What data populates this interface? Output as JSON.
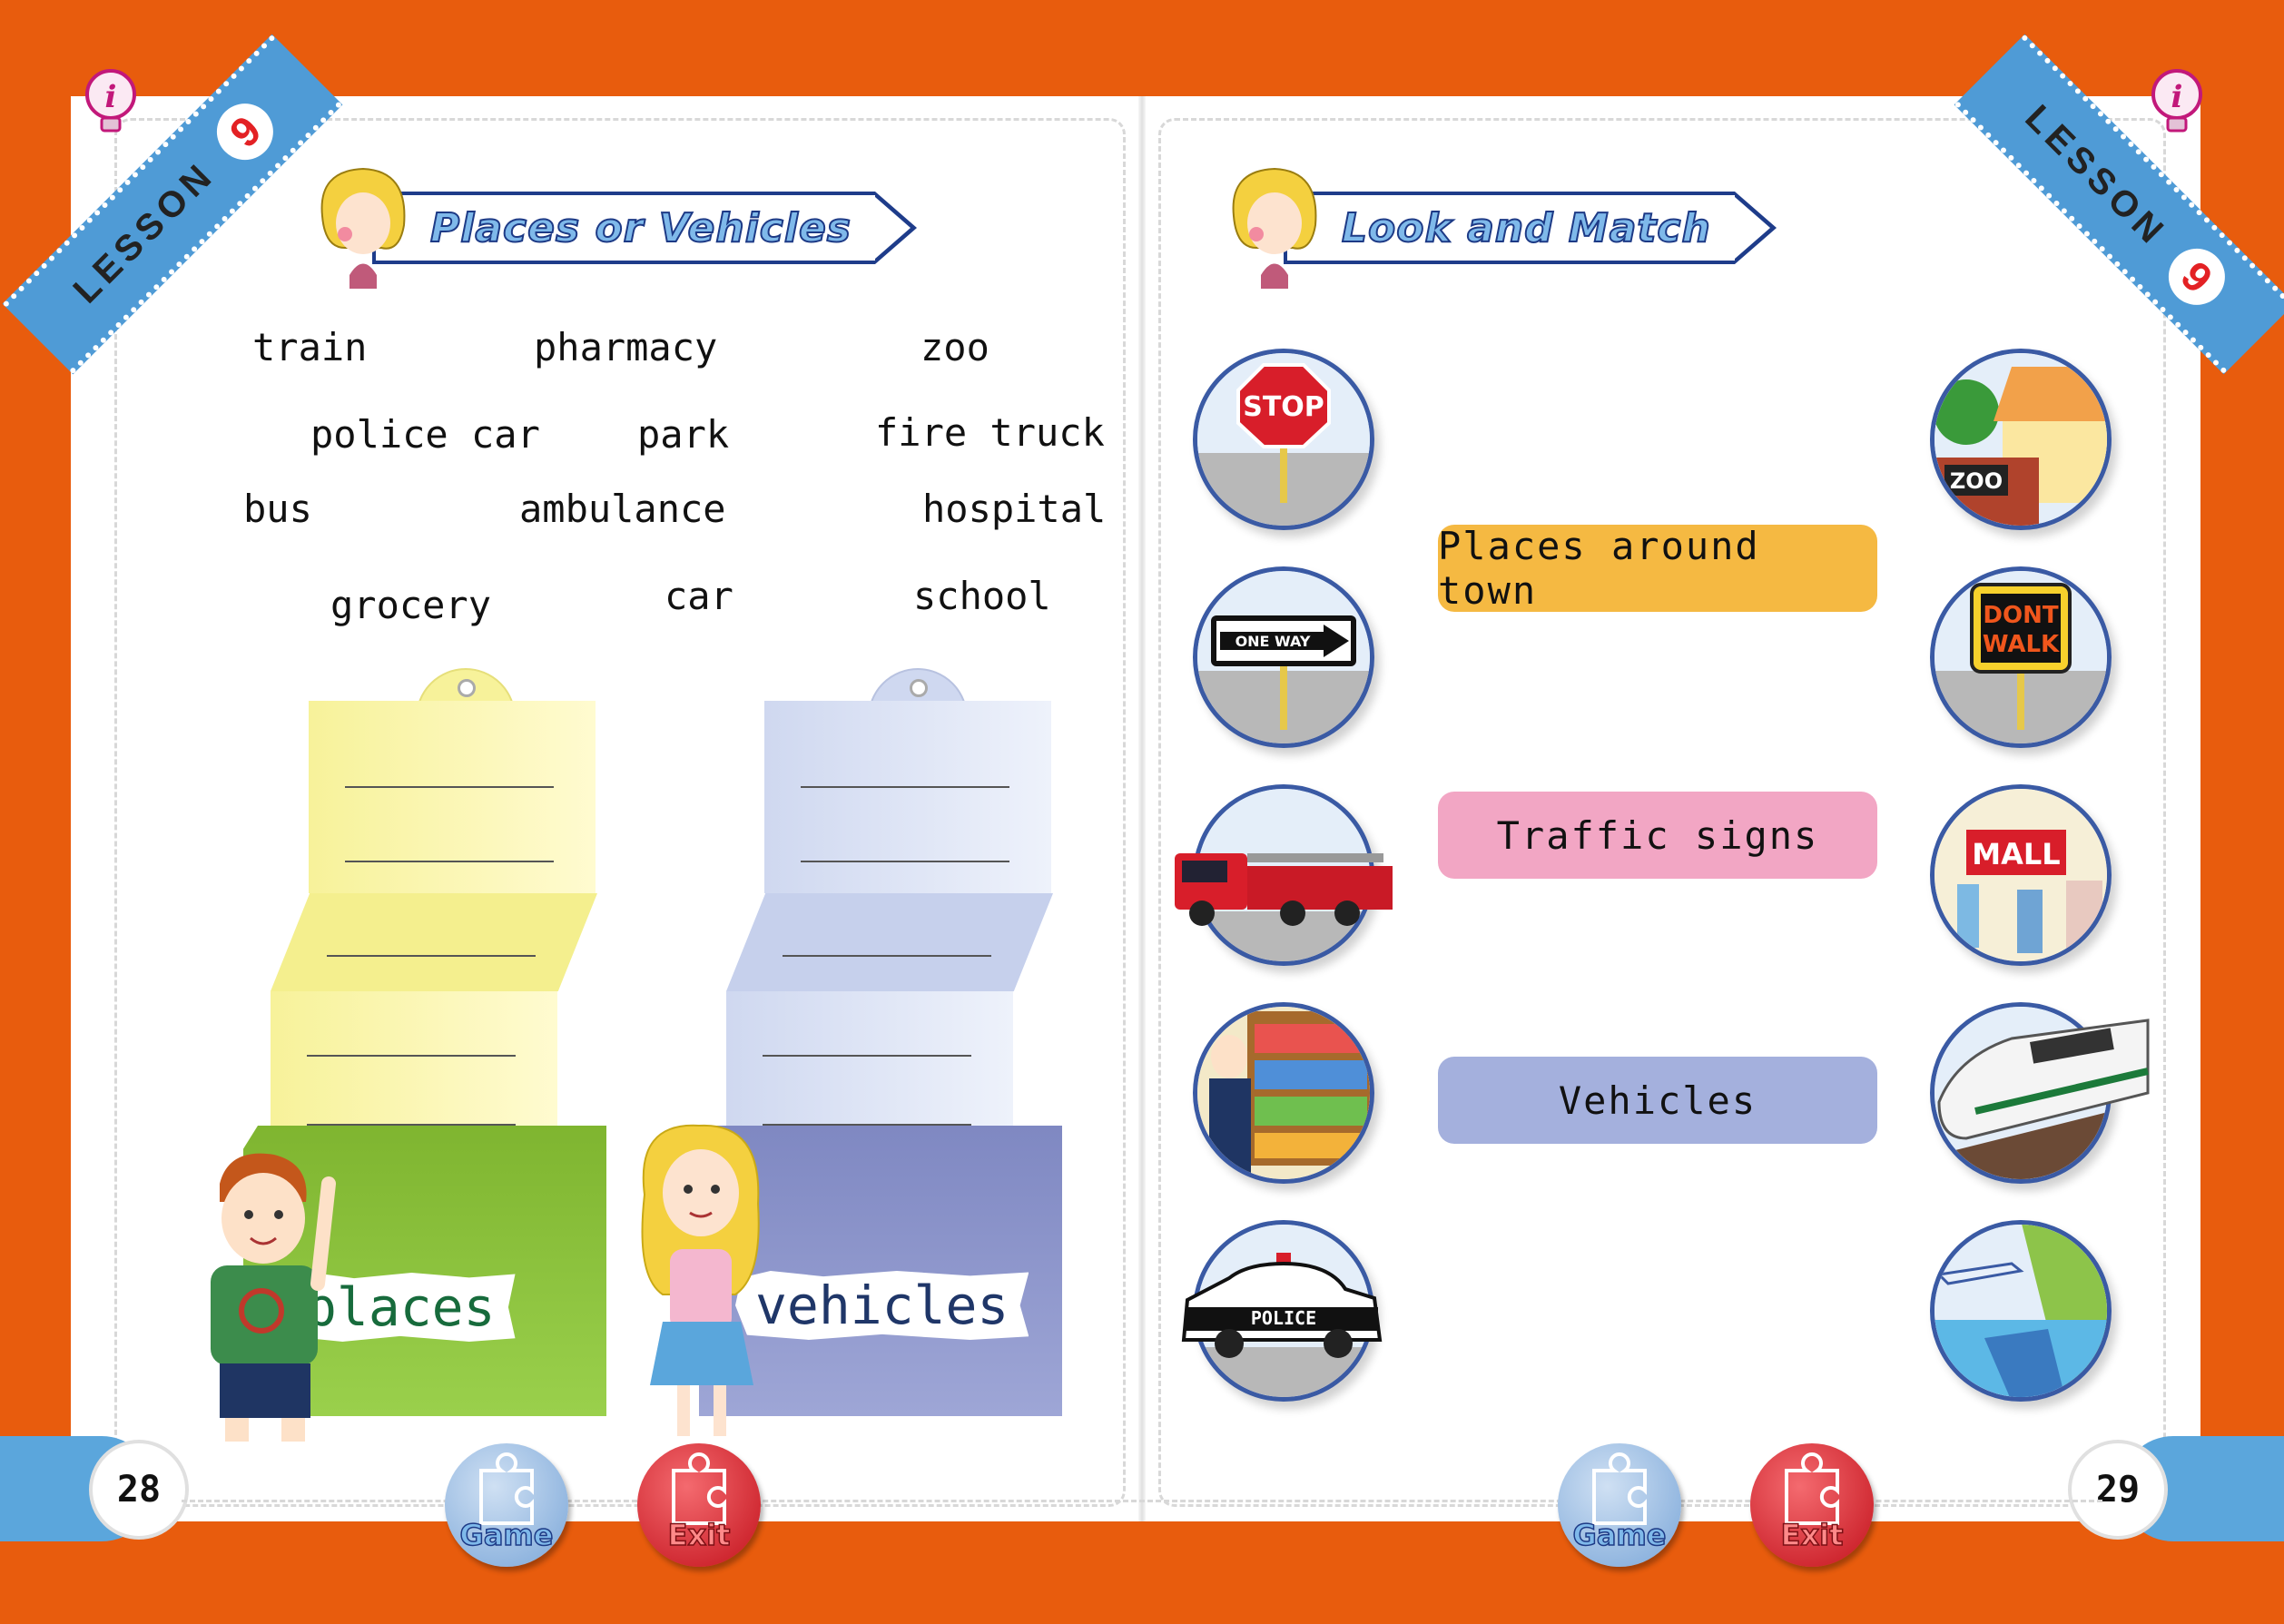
{
  "left_page": {
    "lesson_label": "LESSON",
    "lesson_number": "9",
    "title": "Places or Vehicles",
    "words": [
      "train",
      "pharmacy",
      "zoo",
      "police car",
      "park",
      "fire truck",
      "bus",
      "ambulance",
      "hospital",
      "grocery",
      "car",
      "school"
    ],
    "boxes": [
      {
        "label": "places",
        "label_color": "#176b3c",
        "paper_color": "#f7f29a",
        "box_color": "#8cc63f"
      },
      {
        "label": "vehicles",
        "label_color": "#1f3668",
        "paper_color": "#cfd8f0",
        "box_color": "#8f98cc"
      }
    ],
    "page_number": "28",
    "buttons": {
      "game": "Game",
      "exit": "Exit"
    }
  },
  "right_page": {
    "lesson_label": "LESSON",
    "lesson_number": "9",
    "title": "Look and Match",
    "categories": [
      {
        "label": "Places around town",
        "color": "#f5b942"
      },
      {
        "label": "Traffic signs",
        "color": "#f2a6c4"
      },
      {
        "label": "Vehicles",
        "color": "#a4b0dd"
      }
    ],
    "sign_texts": {
      "stop": "STOP",
      "one_way": "ONE WAY",
      "police": "POLICE",
      "zoo": "ZOO",
      "dont": "DONT",
      "walk": "WALK",
      "mall": "MALL"
    },
    "page_number": "29",
    "buttons": {
      "game": "Game",
      "exit": "Exit"
    }
  },
  "colors": {
    "frame": "#e85c0d",
    "ribbon": "#4f9bd6",
    "header_border": "#1e3c8a",
    "game_button": "#7aa6d8",
    "exit_button": "#d8202a"
  }
}
